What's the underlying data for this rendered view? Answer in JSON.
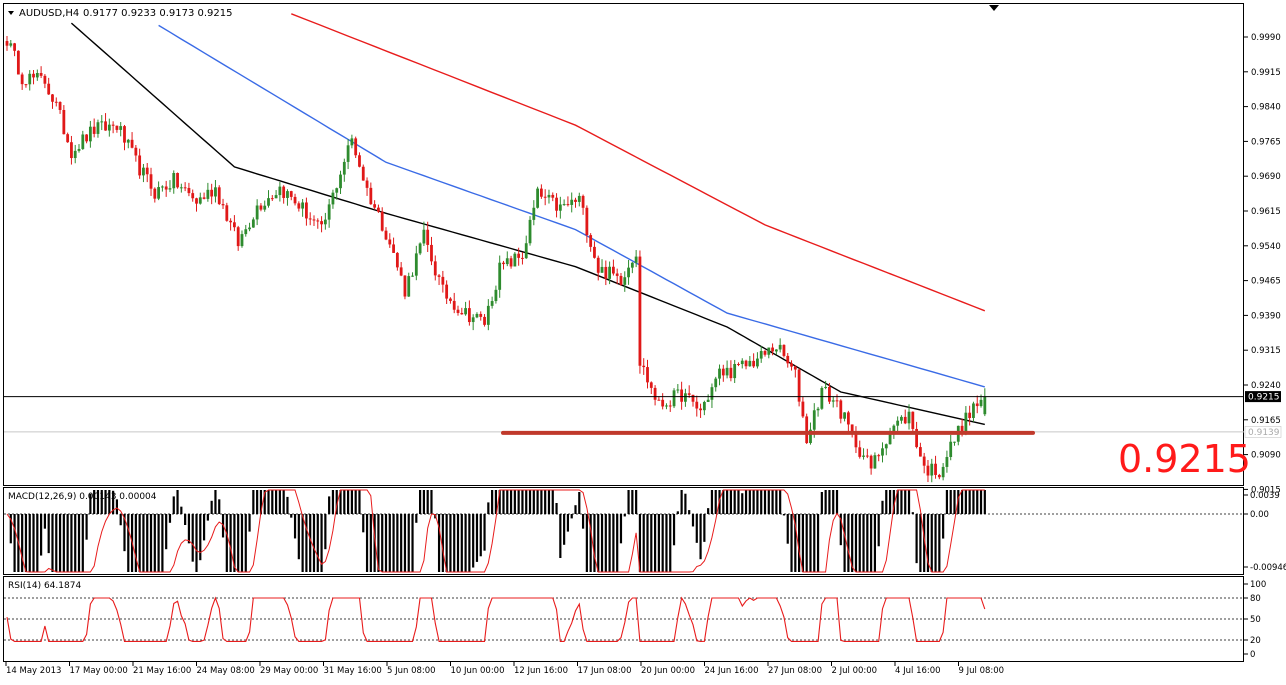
{
  "window": {
    "symbol_label": "AUDUSD,H4",
    "ohlc": "0.9177 0.9233 0.9173 0.9215"
  },
  "current_price_label": "0.9215",
  "support_price_label": "0.9139",
  "big_price_label": "0.9215",
  "colors": {
    "bull": "#2e8b2e",
    "bear": "#e01818",
    "ma_fast": "#000000",
    "ma_mid": "#3a6be6",
    "ma_slow": "#e81c1c",
    "support_line": "#c0392b",
    "big_price": "#ff1a1a",
    "macd_signal": "#e81c1c",
    "rsi_line": "#e81c1c"
  },
  "main_axis": {
    "ticks": [
      "0.9990",
      "0.9915",
      "0.9840",
      "0.9765",
      "0.9690",
      "0.9615",
      "0.9540",
      "0.9465",
      "0.9390",
      "0.9315",
      "0.9240",
      "0.9165",
      "0.9090",
      "0.9015"
    ]
  },
  "macd": {
    "label": "MACD(12,26,9) 0.00143 0.00004",
    "ticks": [
      "0.0039",
      "0.00",
      "-0.00946"
    ]
  },
  "rsi": {
    "label": "RSI(14) 64.1874",
    "ticks": [
      "100",
      "80",
      "50",
      "20",
      "0"
    ]
  },
  "time_axis": {
    "labels": [
      "14 May 2013",
      "17 May 00:00",
      "21 May 16:00",
      "24 May 08:00",
      "29 May 00:00",
      "31 May 16:00",
      "5 Jun 08:00",
      "10 Jun 00:00",
      "12 Jun 16:00",
      "17 Jun 08:00",
      "20 Jun 00:00",
      "24 Jun 16:00",
      "27 Jun 08:00",
      "2 Jul 00:00",
      "4 Jul 16:00",
      "9 Jul 08:00"
    ]
  },
  "chart_data": {
    "type": "candlestick",
    "symbol": "AUDUSD",
    "timeframe": "H4",
    "ylim": [
      0.8985,
      1.0035
    ],
    "waypoints": [
      {
        "t": 0,
        "p": 0.9985
      },
      {
        "t": 4,
        "p": 0.9905
      },
      {
        "t": 10,
        "p": 0.9895
      },
      {
        "t": 13,
        "p": 0.984
      },
      {
        "t": 17,
        "p": 0.9745
      },
      {
        "t": 23,
        "p": 0.979
      },
      {
        "t": 29,
        "p": 0.98
      },
      {
        "t": 34,
        "p": 0.972
      },
      {
        "t": 39,
        "p": 0.9655
      },
      {
        "t": 44,
        "p": 0.968
      },
      {
        "t": 50,
        "p": 0.9635
      },
      {
        "t": 55,
        "p": 0.9665
      },
      {
        "t": 61,
        "p": 0.9545
      },
      {
        "t": 66,
        "p": 0.9625
      },
      {
        "t": 72,
        "p": 0.9665
      },
      {
        "t": 78,
        "p": 0.962
      },
      {
        "t": 83,
        "p": 0.957
      },
      {
        "t": 88,
        "p": 0.97
      },
      {
        "t": 91,
        "p": 0.977
      },
      {
        "t": 95,
        "p": 0.966
      },
      {
        "t": 100,
        "p": 0.957
      },
      {
        "t": 105,
        "p": 0.9445
      },
      {
        "t": 110,
        "p": 0.956
      },
      {
        "t": 115,
        "p": 0.944
      },
      {
        "t": 120,
        "p": 0.94
      },
      {
        "t": 126,
        "p": 0.9375
      },
      {
        "t": 130,
        "p": 0.949
      },
      {
        "t": 136,
        "p": 0.952
      },
      {
        "t": 140,
        "p": 0.965
      },
      {
        "t": 146,
        "p": 0.962
      },
      {
        "t": 151,
        "p": 0.964
      },
      {
        "t": 156,
        "p": 0.949
      },
      {
        "t": 162,
        "p": 0.947
      },
      {
        "t": 166,
        "p": 0.953
      },
      {
        "t": 167,
        "p": 0.929
      },
      {
        "t": 172,
        "p": 0.9195
      },
      {
        "t": 178,
        "p": 0.922
      },
      {
        "t": 183,
        "p": 0.9185
      },
      {
        "t": 188,
        "p": 0.9265
      },
      {
        "t": 193,
        "p": 0.9275
      },
      {
        "t": 199,
        "p": 0.93
      },
      {
        "t": 203,
        "p": 0.9325
      },
      {
        "t": 208,
        "p": 0.926
      },
      {
        "t": 211,
        "p": 0.9125
      },
      {
        "t": 215,
        "p": 0.923
      },
      {
        "t": 219,
        "p": 0.92
      },
      {
        "t": 223,
        "p": 0.913
      },
      {
        "t": 228,
        "p": 0.906
      },
      {
        "t": 233,
        "p": 0.9145
      },
      {
        "t": 238,
        "p": 0.9175
      },
      {
        "t": 242,
        "p": 0.906
      },
      {
        "t": 246,
        "p": 0.9055
      },
      {
        "t": 251,
        "p": 0.914
      },
      {
        "t": 255,
        "p": 0.919
      },
      {
        "t": 258,
        "p": 0.9215
      }
    ],
    "moving_averages": [
      {
        "color_key": "ma_slow",
        "points": [
          {
            "t": 75,
            "p": 1.004
          },
          {
            "t": 150,
            "p": 0.98
          },
          {
            "t": 200,
            "p": 0.9585
          },
          {
            "t": 258,
            "p": 0.94
          }
        ]
      },
      {
        "t_note": "mid",
        "color_key": "ma_mid",
        "points": [
          {
            "t": 40,
            "p": 1.0015
          },
          {
            "t": 100,
            "p": 0.972
          },
          {
            "t": 150,
            "p": 0.9575
          },
          {
            "t": 190,
            "p": 0.9395
          },
          {
            "t": 258,
            "p": 0.9236
          }
        ]
      },
      {
        "color_key": "ma_fast",
        "points": [
          {
            "t": 17,
            "p": 1.002
          },
          {
            "t": 60,
            "p": 0.971
          },
          {
            "t": 100,
            "p": 0.961
          },
          {
            "t": 150,
            "p": 0.9495
          },
          {
            "t": 190,
            "p": 0.9365
          },
          {
            "t": 220,
            "p": 0.9225
          },
          {
            "t": 258,
            "p": 0.9155
          }
        ]
      }
    ],
    "current_price": 0.9215,
    "support_level": 0.9139
  }
}
